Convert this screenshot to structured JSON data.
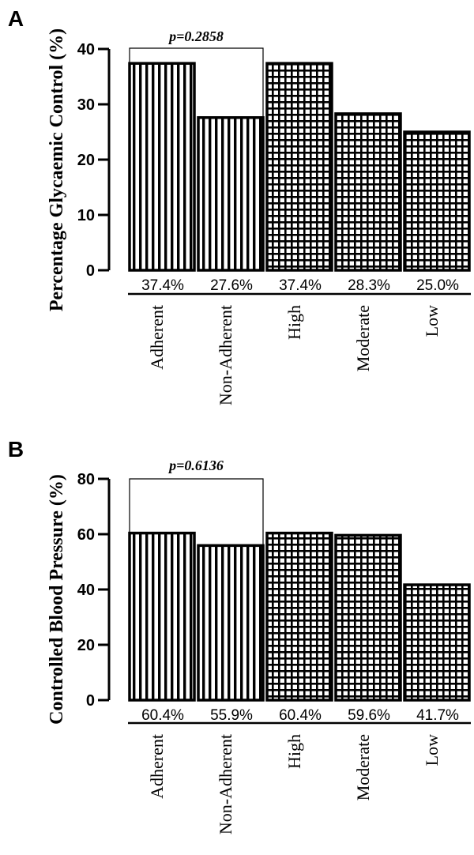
{
  "chart_data": [
    {
      "type": "bar",
      "panel_label": "A",
      "ylabel": "Percentage Glycaemic Control (%)",
      "categories": [
        "Adherent",
        "Non-Adherent",
        "High",
        "Moderate",
        "Low"
      ],
      "values": [
        37.4,
        27.6,
        37.4,
        28.3,
        25.0
      ],
      "data_labels": [
        "37.4%",
        "27.6%",
        "37.4%",
        "28.3%",
        "25.0%"
      ],
      "patterns": [
        "vertical-stripes",
        "vertical-stripes",
        "grid",
        "grid",
        "grid"
      ],
      "ylim": [
        0,
        40
      ],
      "yticks": [
        0,
        10,
        20,
        30,
        40
      ],
      "annotation": {
        "text": "p=0.2858",
        "spans": [
          "Adherent",
          "Non-Adherent"
        ]
      },
      "grid": false
    },
    {
      "type": "bar",
      "panel_label": "B",
      "ylabel": "Controlled Blood Pressure (%)",
      "categories": [
        "Adherent",
        "Non-Adherent",
        "High",
        "Moderate",
        "Low"
      ],
      "values": [
        60.4,
        55.9,
        60.4,
        59.6,
        41.7
      ],
      "data_labels": [
        "60.4%",
        "55.9%",
        "60.4%",
        "59.6%",
        "41.7%"
      ],
      "patterns": [
        "vertical-stripes",
        "vertical-stripes",
        "grid",
        "grid",
        "grid"
      ],
      "ylim": [
        0,
        80
      ],
      "yticks": [
        0,
        20,
        40,
        60,
        80
      ],
      "annotation": {
        "text": "p=0.6136",
        "spans": [
          "Adherent",
          "Non-Adherent"
        ]
      },
      "grid": false
    }
  ],
  "colors": {
    "bar_fill": "#ffffff",
    "bar_stroke": "#000000",
    "text": "#000000"
  }
}
